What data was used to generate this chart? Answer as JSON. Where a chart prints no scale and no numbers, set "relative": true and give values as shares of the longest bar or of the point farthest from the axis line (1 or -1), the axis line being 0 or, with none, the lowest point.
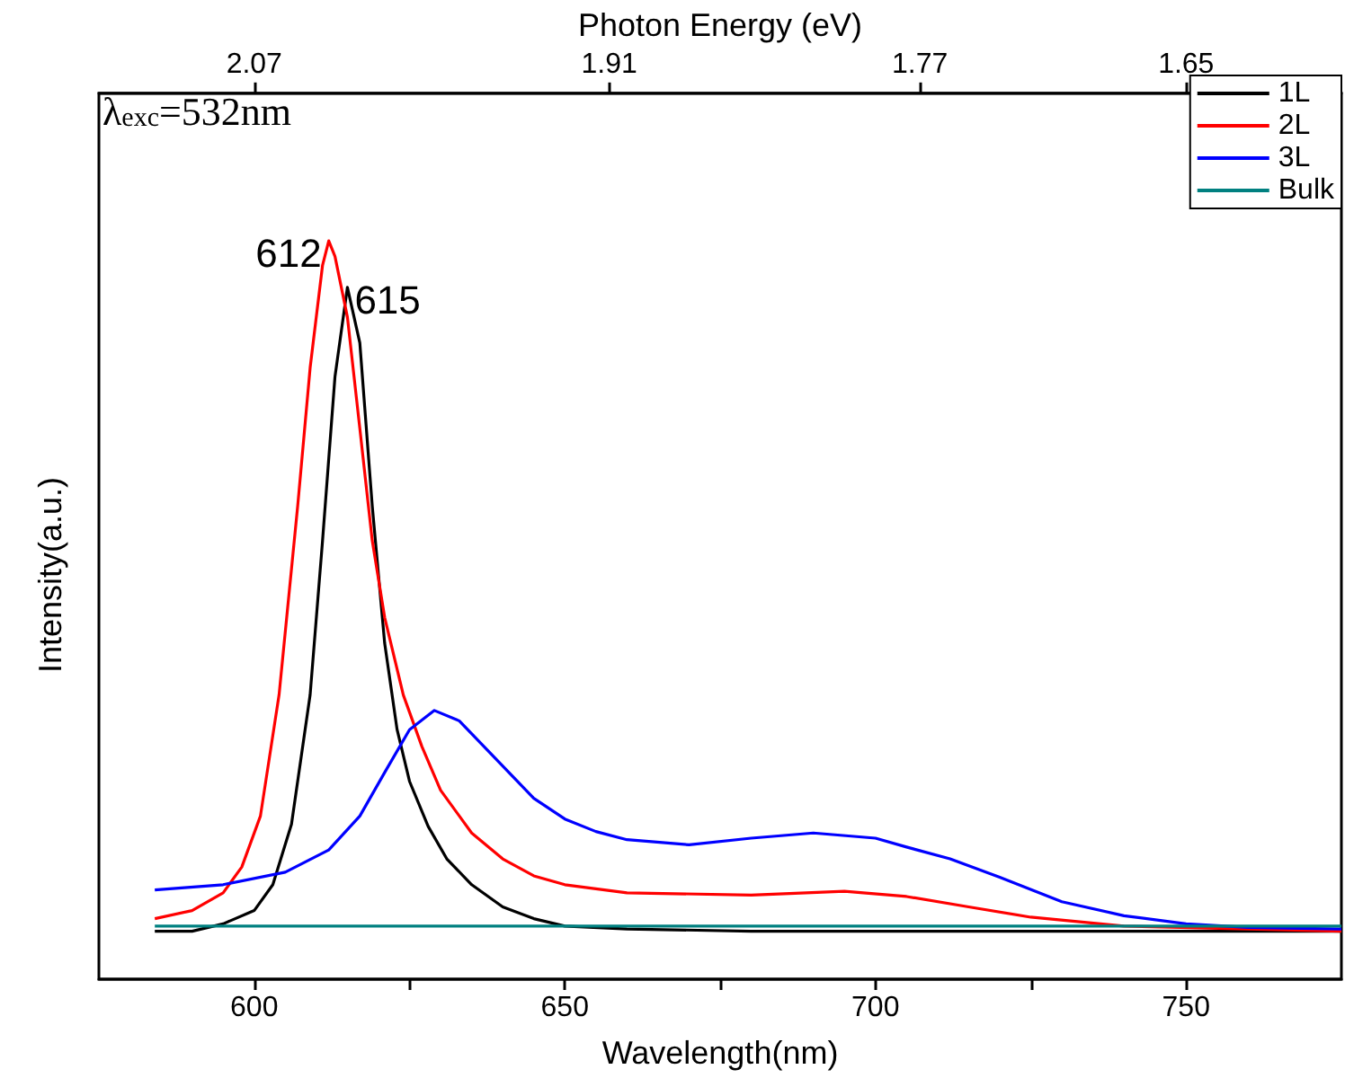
{
  "chart_data": {
    "type": "line",
    "relative": true,
    "xlabel": "Wavelength(nm)",
    "ylabel": "Intensity(a.u.)",
    "x2label": "Photon Energy (eV)",
    "xlim": [
      575,
      775
    ],
    "xticks": [
      600,
      {
        "value": 625,
        "label": null
      },
      650,
      {
        "value": 675,
        "label": null
      },
      700,
      {
        "value": 725,
        "label": null
      },
      750
    ],
    "x2lim": [
      2.14,
      1.58
    ],
    "x2ticks": [
      2.07,
      1.91,
      1.77,
      1.65
    ],
    "tick_labels": "x",
    "grid": false,
    "legend": "top right",
    "marker": "none",
    "line_style": "solid",
    "annotations": [
      "λ$_{exc}$=532nm",
      {
        "text": "612",
        "x": 612,
        "y": 1
      },
      {
        "text": "615",
        "x": 615,
        "y": 0.937
      }
    ],
    "series": [
      {
        "name": "1L",
        "color": "#000000",
        "x": [
          584,
          590,
          595,
          600,
          603,
          606,
          609,
          611,
          613,
          615,
          617,
          619,
          621,
          623,
          625,
          628,
          631,
          635,
          640,
          645,
          650,
          660,
          680,
          720,
          775
        ],
        "values": [
          0.065,
          0.065,
          0.075,
          0.093,
          0.128,
          0.21,
          0.385,
          0.594,
          0.816,
          0.937,
          0.862,
          0.641,
          0.455,
          0.338,
          0.268,
          0.207,
          0.163,
          0.128,
          0.098,
          0.082,
          0.072,
          0.068,
          0.065,
          0.065,
          0.065
        ]
      },
      {
        "name": "2L",
        "color": "#ff0000",
        "x": [
          584,
          590,
          595,
          598,
          601,
          604,
          607,
          609,
          611,
          612,
          613,
          615,
          617,
          619,
          621,
          624,
          627,
          630,
          635,
          640,
          645,
          650,
          660,
          680,
          695,
          705,
          715,
          725,
          740,
          760,
          775
        ],
        "values": [
          0.082,
          0.093,
          0.117,
          0.152,
          0.221,
          0.385,
          0.641,
          0.828,
          0.967,
          1,
          0.979,
          0.897,
          0.746,
          0.594,
          0.49,
          0.385,
          0.315,
          0.256,
          0.198,
          0.163,
          0.14,
          0.128,
          0.117,
          0.114,
          0.119,
          0.112,
          0.098,
          0.084,
          0.072,
          0.068,
          0.065
        ]
      },
      {
        "name": "3L",
        "color": "#0000ff",
        "x": [
          584,
          595,
          605,
          612,
          617,
          621,
          625,
          629,
          633,
          637,
          641,
          645,
          650,
          655,
          660,
          670,
          680,
          690,
          700,
          705,
          712,
          720,
          730,
          740,
          750,
          760,
          775
        ],
        "values": [
          0.121,
          0.128,
          0.145,
          0.175,
          0.221,
          0.28,
          0.338,
          0.364,
          0.35,
          0.315,
          0.28,
          0.245,
          0.217,
          0.2,
          0.189,
          0.182,
          0.191,
          0.198,
          0.191,
          0.179,
          0.163,
          0.138,
          0.105,
          0.086,
          0.075,
          0.07,
          0.068
        ]
      },
      {
        "name": "Bulk",
        "color": "#008080",
        "x": [
          584,
          650,
          700,
          775
        ],
        "values": [
          0.072,
          0.072,
          0.072,
          0.072
        ]
      }
    ]
  }
}
